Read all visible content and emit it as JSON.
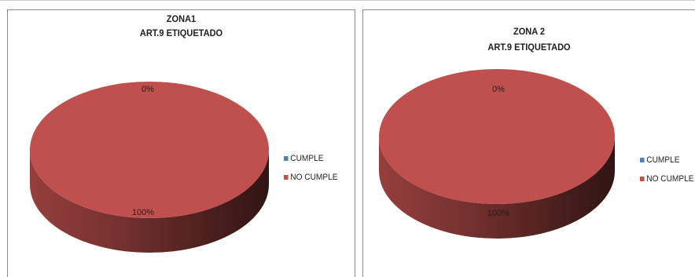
{
  "chart_data": [
    {
      "type": "pie",
      "title": "ZONA1",
      "subtitle": "ART.9 ETIQUETADO",
      "categories": [
        "CUMPLE",
        "NO CUMPLE"
      ],
      "values": [
        0,
        100
      ],
      "data_labels": [
        "0%",
        "100%"
      ],
      "colors": [
        "#4f81bd",
        "#c0504d"
      ],
      "legend_position": "right"
    },
    {
      "type": "pie",
      "title": "ZONA 2",
      "subtitle": "ART.9 ETIQUETADO",
      "categories": [
        "CUMPLE",
        "NO CUMPLE"
      ],
      "values": [
        0,
        100
      ],
      "data_labels": [
        "0%",
        "100%"
      ],
      "colors": [
        "#4f81bd",
        "#c0504d"
      ],
      "legend_position": "right"
    }
  ]
}
